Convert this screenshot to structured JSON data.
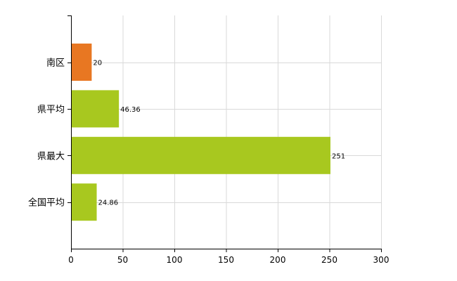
{
  "chart_data": {
    "type": "bar",
    "orientation": "horizontal",
    "categories": [
      "南区",
      "県平均",
      "県最大",
      "全国平均"
    ],
    "values": [
      20,
      46.36,
      251,
      24.86
    ],
    "data_labels": [
      "20",
      "46.36",
      "251",
      "24.86"
    ],
    "bar_colors": [
      "#e87722",
      "#a8c81f",
      "#a8c81f",
      "#a8c81f"
    ],
    "xlim": [
      0,
      300
    ],
    "x_ticks": [
      0,
      50,
      100,
      150,
      200,
      250,
      300
    ],
    "x_tick_labels": [
      "0",
      "50",
      "100",
      "150",
      "200",
      "250",
      "300"
    ],
    "grid": true,
    "legend": "none"
  }
}
